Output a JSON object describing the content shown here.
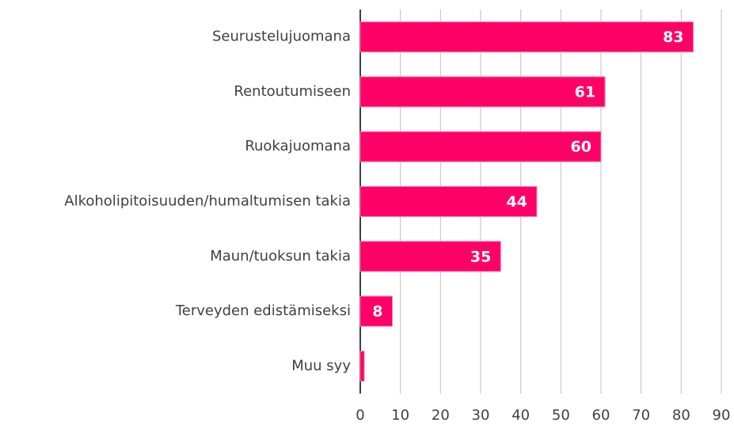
{
  "chart_data": {
    "type": "barh",
    "categories": [
      "Seurustelujuomana",
      "Rentoutumiseen",
      "Ruokajuomana",
      "Alkoholipitoisuuden/humaltumisen takia",
      "Maun/tuoksun takia",
      "Terveyden edistämiseksi",
      "Muu syy"
    ],
    "values": [
      83,
      61,
      60,
      44,
      35,
      8,
      1
    ],
    "value_labels": [
      "83",
      "61",
      "60",
      "44",
      "35",
      "8",
      null
    ],
    "color": "#ff0066",
    "xlim": [
      0,
      90
    ],
    "xticks": [
      0,
      10,
      20,
      30,
      40,
      50,
      60,
      70,
      80,
      90
    ],
    "grid": true
  }
}
